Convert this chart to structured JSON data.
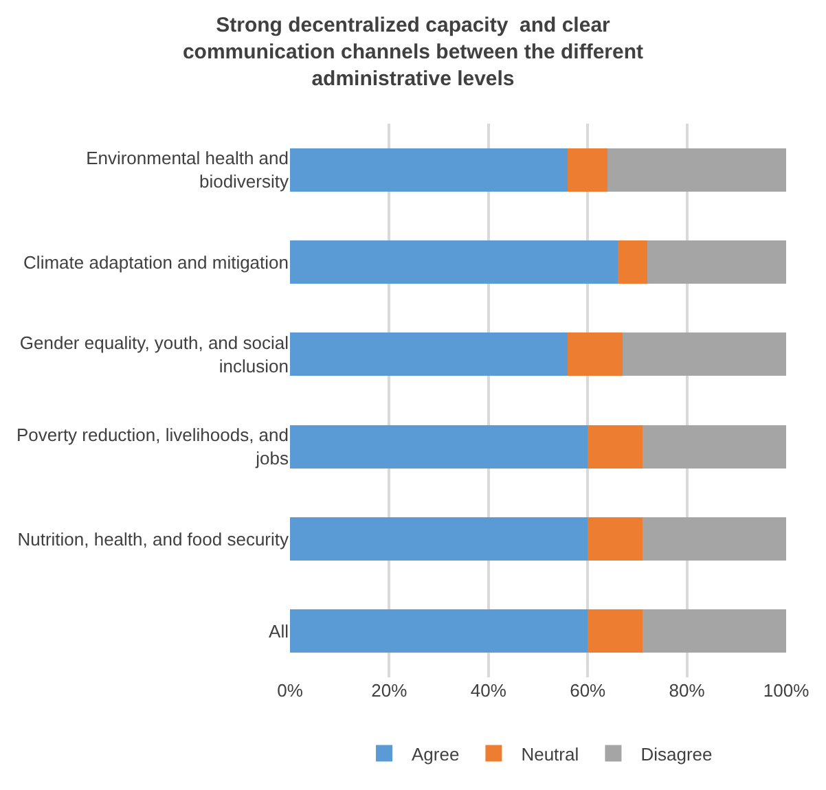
{
  "chart_data": {
    "type": "bar",
    "orientation": "horizontal",
    "stacked": true,
    "title": "Strong decentralized capacity  and clear communication channels between the different administrative levels",
    "categories": [
      "Environmental health and biodiversity",
      "Climate adaptation and mitigation",
      "Gender equality, youth, and social inclusion",
      "Poverty reduction, livelihoods, and jobs",
      "Nutrition, health, and food security",
      "All"
    ],
    "series": [
      {
        "name": "Agree",
        "color": "#5b9bd5",
        "values": [
          56,
          66,
          56,
          60,
          60,
          60
        ]
      },
      {
        "name": "Neutral",
        "color": "#ed7d31",
        "values": [
          8,
          6,
          11,
          11,
          11,
          11
        ]
      },
      {
        "name": "Disagree",
        "color": "#a5a5a5",
        "values": [
          36,
          28,
          33,
          29,
          29,
          29
        ]
      }
    ],
    "xlim": [
      0,
      100
    ],
    "xticks": [
      {
        "value": 0,
        "label": "0%"
      },
      {
        "value": 20,
        "label": "20%"
      },
      {
        "value": 40,
        "label": "40%"
      },
      {
        "value": 60,
        "label": "60%"
      },
      {
        "value": 80,
        "label": "80%"
      },
      {
        "value": 100,
        "label": "100%"
      }
    ],
    "grid": "x",
    "legend": "bottom"
  }
}
